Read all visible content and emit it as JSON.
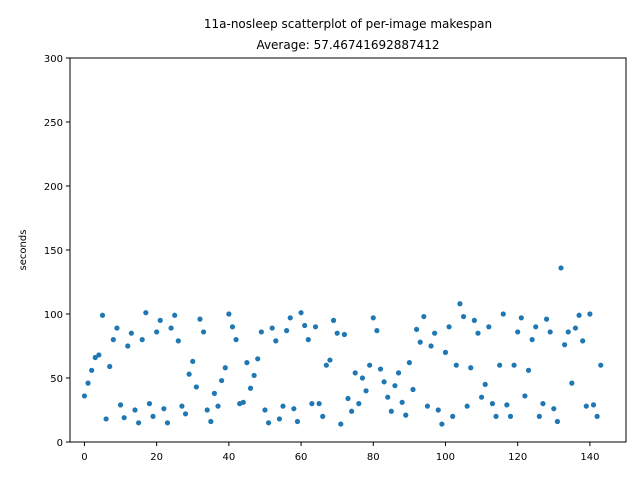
{
  "chart_data": {
    "type": "scatter",
    "title": "11a-nosleep scatterplot of per-image makespan",
    "subtitle": "Average: 57.46741692887412",
    "xlabel": "",
    "ylabel": "seconds",
    "xlim": [
      -4,
      150
    ],
    "ylim": [
      0,
      300
    ],
    "xticks": [
      0,
      20,
      40,
      60,
      80,
      100,
      120,
      140
    ],
    "yticks": [
      0,
      50,
      100,
      150,
      200,
      250,
      300
    ],
    "grid": false,
    "marker_color": "#1f77b4",
    "series": [
      {
        "x": [
          0,
          1,
          2,
          3,
          4,
          5,
          6,
          7,
          8,
          9,
          10,
          11,
          12,
          13,
          14,
          15,
          16,
          17,
          18,
          19,
          20,
          21,
          22,
          23,
          24,
          25,
          26,
          27,
          28,
          29,
          30,
          31,
          32,
          33,
          34,
          35,
          36,
          37,
          38,
          39,
          40,
          41,
          42,
          43,
          44,
          45,
          46,
          47,
          48,
          49,
          50,
          51,
          52,
          53,
          54,
          55,
          56,
          57,
          58,
          59,
          60,
          61,
          62,
          63,
          64,
          65,
          66,
          67,
          68,
          69,
          70,
          71,
          72,
          73,
          74,
          75,
          76,
          77,
          78,
          79,
          80,
          81,
          82,
          83,
          84,
          85,
          86,
          87,
          88,
          89,
          90,
          91,
          92,
          93,
          94,
          95,
          96,
          97,
          98,
          99,
          100,
          101,
          102,
          103,
          104,
          105,
          106,
          107,
          108,
          109,
          110,
          111,
          112,
          113,
          114,
          115,
          116,
          117,
          118,
          119,
          120,
          121,
          122,
          123,
          124,
          125,
          126,
          127,
          128,
          129,
          130,
          131,
          132,
          133,
          134,
          135,
          136,
          137,
          138,
          139,
          140,
          141,
          142,
          143
        ],
        "y": [
          36,
          46,
          56,
          66,
          68,
          99,
          18,
          59,
          80,
          89,
          29,
          19,
          75,
          85,
          25,
          15,
          80,
          101,
          30,
          20,
          86,
          95,
          26,
          15,
          89,
          99,
          79,
          28,
          22,
          53,
          63,
          43,
          96,
          86,
          25,
          16,
          38,
          28,
          48,
          58,
          100,
          90,
          80,
          30,
          31,
          62,
          42,
          52,
          65,
          86,
          25,
          15,
          89,
          79,
          18,
          28,
          87,
          97,
          26,
          16,
          101,
          91,
          80,
          30,
          90,
          30,
          20,
          60,
          64,
          95,
          85,
          14,
          84,
          34,
          24,
          54,
          30,
          50,
          40,
          60,
          97,
          87,
          57,
          47,
          35,
          24,
          44,
          54,
          31,
          21,
          62,
          41,
          88,
          78,
          98,
          28,
          75,
          85,
          25,
          14,
          70,
          90,
          20,
          60,
          108,
          98,
          28,
          58,
          95,
          85,
          35,
          45,
          90,
          30,
          20,
          60,
          100,
          29,
          20,
          60,
          86,
          97,
          36,
          56,
          80,
          90,
          20,
          30,
          96,
          86,
          26,
          16,
          136,
          76,
          86,
          46,
          89,
          99,
          79,
          28,
          100,
          29,
          20,
          60
        ]
      }
    ]
  }
}
